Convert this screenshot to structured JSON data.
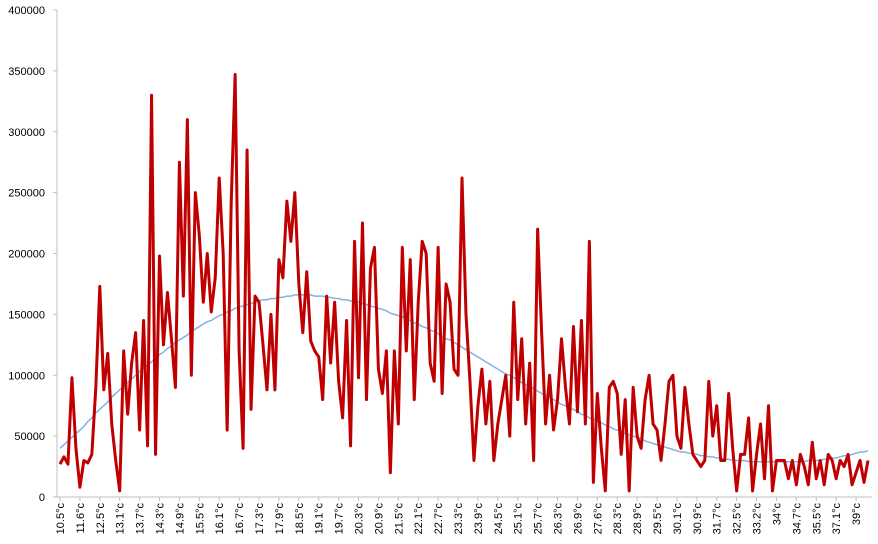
{
  "chart_data": {
    "type": "line",
    "categories": [
      "10.5°c",
      null,
      null,
      null,
      null,
      "11.6°c",
      null,
      null,
      null,
      null,
      "12.5°c",
      null,
      null,
      null,
      null,
      "13.1°c",
      null,
      null,
      null,
      null,
      "13.7°c",
      null,
      null,
      null,
      null,
      "14.3°c",
      null,
      null,
      null,
      null,
      "14.9°c",
      null,
      null,
      null,
      null,
      "15.5°c",
      null,
      null,
      null,
      null,
      "16.1°c",
      null,
      null,
      null,
      null,
      "16.7°c",
      null,
      null,
      null,
      null,
      "17.3°c",
      null,
      null,
      null,
      null,
      "17.9°c",
      null,
      null,
      null,
      null,
      "18.5°c",
      null,
      null,
      null,
      null,
      "19.1°c",
      null,
      null,
      null,
      null,
      "19.7°c",
      null,
      null,
      null,
      null,
      "20.3°c",
      null,
      null,
      null,
      null,
      "20.9°c",
      null,
      null,
      null,
      null,
      "21.5°c",
      null,
      null,
      null,
      null,
      "22.1°c",
      null,
      null,
      null,
      null,
      "22.7°c",
      null,
      null,
      null,
      null,
      "23.3°c",
      null,
      null,
      null,
      null,
      "23.9°c",
      null,
      null,
      null,
      null,
      "24.5°c",
      null,
      null,
      null,
      null,
      "25.1°c",
      null,
      null,
      null,
      null,
      "25.7°c",
      null,
      null,
      null,
      null,
      "26.3°c",
      null,
      null,
      null,
      null,
      "26.9°c",
      null,
      null,
      null,
      null,
      "27.6°c",
      null,
      null,
      null,
      null,
      "28.3°c",
      null,
      null,
      null,
      null,
      "28.9°c",
      null,
      null,
      null,
      null,
      "29.5°c",
      null,
      null,
      null,
      null,
      "30.1°c",
      null,
      null,
      null,
      null,
      "30.9°c",
      null,
      null,
      null,
      null,
      "31.7°c",
      null,
      null,
      null,
      null,
      "32.5°c",
      null,
      null,
      null,
      null,
      "33.2°c",
      null,
      null,
      null,
      null,
      "34°c",
      null,
      null,
      null,
      null,
      "34.7°c",
      null,
      null,
      null,
      null,
      "35.5°c",
      null,
      null,
      null,
      null,
      "37.1°c",
      null,
      null,
      null,
      null,
      "39°c",
      null,
      null,
      null
    ],
    "series": [
      {
        "color": "#c00000",
        "values": [
          27000,
          33000,
          27000,
          98000,
          40000,
          8000,
          30000,
          28000,
          35000,
          90000,
          173000,
          88000,
          118000,
          60000,
          30000,
          5000,
          120000,
          68000,
          110000,
          135000,
          55000,
          145000,
          42000,
          330000,
          35000,
          198000,
          125000,
          168000,
          130000,
          90000,
          275000,
          165000,
          310000,
          100000,
          250000,
          215000,
          160000,
          200000,
          152000,
          180000,
          262000,
          200000,
          55000,
          240000,
          347000,
          120000,
          40000,
          285000,
          72000,
          165000,
          160000,
          125000,
          88000,
          150000,
          88000,
          195000,
          180000,
          243000,
          210000,
          250000,
          175000,
          135000,
          185000,
          128000,
          120000,
          115000,
          80000,
          165000,
          110000,
          160000,
          95000,
          65000,
          145000,
          42000,
          210000,
          98000,
          225000,
          80000,
          188000,
          205000,
          105000,
          85000,
          120000,
          20000,
          120000,
          60000,
          205000,
          120000,
          195000,
          80000,
          160000,
          210000,
          200000,
          110000,
          95000,
          205000,
          85000,
          175000,
          160000,
          105000,
          100000,
          262000,
          150000,
          95000,
          30000,
          75000,
          105000,
          60000,
          95000,
          30000,
          60000,
          80000,
          100000,
          50000,
          160000,
          80000,
          130000,
          60000,
          110000,
          30000,
          220000,
          135000,
          60000,
          100000,
          55000,
          80000,
          130000,
          90000,
          60000,
          140000,
          70000,
          145000,
          60000,
          210000,
          12000,
          85000,
          40000,
          5000,
          90000,
          95000,
          85000,
          35000,
          80000,
          5000,
          90000,
          50000,
          40000,
          80000,
          100000,
          60000,
          55000,
          30000,
          60000,
          95000,
          100000,
          50000,
          40000,
          90000,
          60000,
          35000,
          30000,
          25000,
          30000,
          95000,
          50000,
          75000,
          30000,
          30000,
          85000,
          40000,
          5000,
          35000,
          35000,
          65000,
          5000,
          35000,
          60000,
          15000,
          75000,
          5000,
          30000,
          30000,
          30000,
          15000,
          30000,
          10000,
          35000,
          25000,
          10000,
          45000,
          15000,
          30000,
          10000,
          35000,
          30000,
          15000,
          30000,
          25000,
          35000,
          10000,
          20000,
          30000,
          12000,
          30000
        ]
      },
      {
        "color": "#7fb3e0",
        "values": [
          40000,
          43000,
          46000,
          49000,
          52000,
          55000,
          58000,
          62000,
          65000,
          69000,
          72000,
          75000,
          78000,
          82000,
          85000,
          88000,
          91000,
          94000,
          97000,
          100000,
          103000,
          106000,
          108000,
          111000,
          114000,
          117000,
          119000,
          122000,
          124000,
          127000,
          129000,
          131000,
          133000,
          136000,
          138000,
          140000,
          142000,
          144000,
          145000,
          147000,
          149000,
          150000,
          152000,
          153000,
          155000,
          156000,
          157000,
          158000,
          159000,
          160000,
          161000,
          162000,
          162000,
          163000,
          163000,
          164000,
          164000,
          165000,
          165000,
          166000,
          166000,
          166000,
          166000,
          166000,
          165000,
          165000,
          165000,
          164000,
          164000,
          163000,
          163000,
          162000,
          162000,
          161000,
          161000,
          160000,
          159000,
          158000,
          157000,
          156000,
          155000,
          154000,
          153000,
          151000,
          150000,
          149000,
          148000,
          146000,
          145000,
          143000,
          142000,
          140000,
          139000,
          137000,
          136000,
          134000,
          132000,
          130000,
          129000,
          127000,
          125000,
          123000,
          121000,
          119000,
          117000,
          115000,
          113000,
          111000,
          109000,
          107000,
          105000,
          103000,
          101000,
          100000,
          98000,
          96000,
          94000,
          92000,
          91000,
          89000,
          87000,
          85000,
          83000,
          82000,
          80000,
          78000,
          76000,
          75000,
          73000,
          72000,
          70000,
          68000,
          67000,
          65000,
          64000,
          62000,
          61000,
          59000,
          58000,
          56000,
          55000,
          54000,
          52000,
          51000,
          50000,
          49000,
          48000,
          46000,
          45000,
          44000,
          43000,
          42000,
          41000,
          40000,
          39000,
          38000,
          37000,
          37000,
          36000,
          36000,
          35000,
          34000,
          34000,
          33000,
          33000,
          32000,
          32000,
          31000,
          31000,
          30000,
          30000,
          30000,
          30000,
          29000,
          29000,
          29000,
          29000,
          29000,
          29000,
          29000,
          29000,
          29000,
          29000,
          29000,
          29000,
          29000,
          29000,
          29000,
          30000,
          30000,
          30000,
          30000,
          31000,
          31000,
          32000,
          32000,
          33000,
          34000,
          34000,
          35000,
          36000,
          37000,
          37000,
          38000
        ]
      }
    ],
    "ylim": [
      0,
      400000
    ],
    "yticks": [
      0,
      50000,
      100000,
      150000,
      200000,
      250000,
      300000,
      350000,
      400000
    ],
    "grid": false
  }
}
